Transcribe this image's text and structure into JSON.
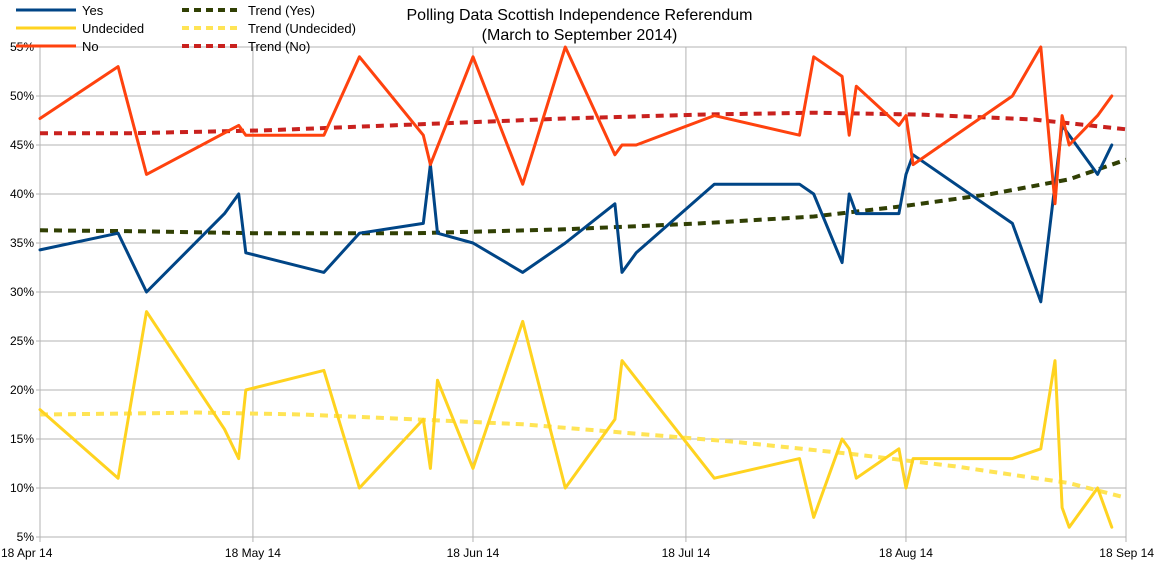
{
  "chart_data": {
    "type": "line",
    "title": "Polling Data Scottish Independence Referendum",
    "subtitle": "(March to September 2014)",
    "x_tick_labels": [
      "18 Apr 14",
      "18 May 14",
      "18 Jun 14",
      "18 Jul 14",
      "18 Aug 14",
      "18 Sep 14"
    ],
    "y_tick_labels": [
      "5%",
      "10%",
      "15%",
      "20%",
      "25%",
      "30%",
      "35%",
      "40%",
      "45%",
      "50%",
      "55%"
    ],
    "ylim": [
      5,
      55
    ],
    "grid": true,
    "legend_position": "top-left",
    "series": [
      {
        "name": "Yes",
        "color": "#004586",
        "dashed": false,
        "points": [
          [
            "2014-04-18",
            34.3
          ],
          [
            "2014-04-29",
            36
          ],
          [
            "2014-05-03",
            30
          ],
          [
            "2014-05-14",
            38
          ],
          [
            "2014-05-16",
            40
          ],
          [
            "2014-05-17",
            34
          ],
          [
            "2014-05-28",
            32
          ],
          [
            "2014-06-02",
            36
          ],
          [
            "2014-06-11",
            37
          ],
          [
            "2014-06-12",
            43
          ],
          [
            "2014-06-13",
            36
          ],
          [
            "2014-06-18",
            35
          ],
          [
            "2014-06-25",
            32
          ],
          [
            "2014-07-01",
            35
          ],
          [
            "2014-07-08",
            39
          ],
          [
            "2014-07-09",
            32
          ],
          [
            "2014-07-11",
            34
          ],
          [
            "2014-07-22",
            41
          ],
          [
            "2014-08-03",
            41
          ],
          [
            "2014-08-05",
            40
          ],
          [
            "2014-08-09",
            33
          ],
          [
            "2014-08-10",
            40
          ],
          [
            "2014-08-11",
            38
          ],
          [
            "2014-08-17",
            38
          ],
          [
            "2014-08-18",
            42
          ],
          [
            "2014-08-19",
            44
          ],
          [
            "2014-09-02",
            37
          ],
          [
            "2014-09-06",
            29
          ],
          [
            "2014-09-08",
            41
          ],
          [
            "2014-09-09",
            47
          ],
          [
            "2014-09-14",
            42
          ],
          [
            "2014-09-16",
            45
          ]
        ]
      },
      {
        "name": "Undecided",
        "color": "#ffd320",
        "dashed": false,
        "points": [
          [
            "2014-04-18",
            18
          ],
          [
            "2014-04-29",
            11
          ],
          [
            "2014-05-03",
            28
          ],
          [
            "2014-05-14",
            16
          ],
          [
            "2014-05-16",
            13
          ],
          [
            "2014-05-17",
            20
          ],
          [
            "2014-05-28",
            22
          ],
          [
            "2014-06-02",
            10
          ],
          [
            "2014-06-11",
            17
          ],
          [
            "2014-06-12",
            12
          ],
          [
            "2014-06-13",
            21
          ],
          [
            "2014-06-18",
            12
          ],
          [
            "2014-06-25",
            27
          ],
          [
            "2014-07-01",
            10
          ],
          [
            "2014-07-08",
            17
          ],
          [
            "2014-07-09",
            23
          ],
          [
            "2014-07-22",
            11
          ],
          [
            "2014-08-03",
            13
          ],
          [
            "2014-08-05",
            7
          ],
          [
            "2014-08-09",
            15
          ],
          [
            "2014-08-10",
            14
          ],
          [
            "2014-08-11",
            11
          ],
          [
            "2014-08-17",
            14
          ],
          [
            "2014-08-18",
            10
          ],
          [
            "2014-08-19",
            13
          ],
          [
            "2014-09-02",
            13
          ],
          [
            "2014-09-06",
            14
          ],
          [
            "2014-09-08",
            23
          ],
          [
            "2014-09-09",
            8
          ],
          [
            "2014-09-10",
            6
          ],
          [
            "2014-09-14",
            10
          ],
          [
            "2014-09-16",
            6
          ]
        ]
      },
      {
        "name": "No",
        "color": "#ff420e",
        "dashed": false,
        "points": [
          [
            "2014-04-18",
            47.7
          ],
          [
            "2014-04-29",
            53
          ],
          [
            "2014-05-03",
            42
          ],
          [
            "2014-05-16",
            47
          ],
          [
            "2014-05-17",
            46
          ],
          [
            "2014-05-28",
            46
          ],
          [
            "2014-06-02",
            54
          ],
          [
            "2014-06-11",
            46
          ],
          [
            "2014-06-12",
            43
          ],
          [
            "2014-06-18",
            54
          ],
          [
            "2014-06-25",
            41
          ],
          [
            "2014-07-01",
            55
          ],
          [
            "2014-07-08",
            44
          ],
          [
            "2014-07-09",
            45
          ],
          [
            "2014-07-11",
            45
          ],
          [
            "2014-07-22",
            48
          ],
          [
            "2014-08-03",
            46
          ],
          [
            "2014-08-05",
            54
          ],
          [
            "2014-08-09",
            52
          ],
          [
            "2014-08-10",
            46
          ],
          [
            "2014-08-11",
            51
          ],
          [
            "2014-08-17",
            47
          ],
          [
            "2014-08-18",
            48
          ],
          [
            "2014-08-19",
            43
          ],
          [
            "2014-09-02",
            50
          ],
          [
            "2014-09-06",
            55
          ],
          [
            "2014-09-08",
            39
          ],
          [
            "2014-09-09",
            48
          ],
          [
            "2014-09-10",
            45
          ],
          [
            "2014-09-14",
            48
          ],
          [
            "2014-09-16",
            50
          ]
        ]
      },
      {
        "name": "Trend (Yes)",
        "color": "#314004",
        "dashed": true,
        "points": [
          [
            "2014-04-18",
            36.3
          ],
          [
            "2014-05-01",
            36.2
          ],
          [
            "2014-05-18",
            36.0
          ],
          [
            "2014-06-10",
            36.0
          ],
          [
            "2014-07-01",
            36.4
          ],
          [
            "2014-07-20",
            37.0
          ],
          [
            "2014-08-05",
            37.7
          ],
          [
            "2014-08-18",
            38.8
          ],
          [
            "2014-08-30",
            40.0
          ],
          [
            "2014-09-10",
            41.5
          ],
          [
            "2014-09-18",
            43.5
          ]
        ]
      },
      {
        "name": "Trend (Undecided)",
        "color": "#ffe455",
        "dashed": true,
        "points": [
          [
            "2014-04-18",
            17.5
          ],
          [
            "2014-05-01",
            17.6
          ],
          [
            "2014-05-10",
            17.7
          ],
          [
            "2014-05-25",
            17.5
          ],
          [
            "2014-06-10",
            17.0
          ],
          [
            "2014-06-25",
            16.5
          ],
          [
            "2014-07-10",
            15.6
          ],
          [
            "2014-07-25",
            14.7
          ],
          [
            "2014-08-10",
            13.5
          ],
          [
            "2014-08-25",
            12.2
          ],
          [
            "2014-09-10",
            10.5
          ],
          [
            "2014-09-18",
            9.0
          ]
        ]
      },
      {
        "name": "Trend (No)",
        "color": "#c9211e",
        "dashed": true,
        "points": [
          [
            "2014-04-18",
            46.2
          ],
          [
            "2014-05-01",
            46.2
          ],
          [
            "2014-05-20",
            46.5
          ],
          [
            "2014-06-10",
            47.1
          ],
          [
            "2014-07-01",
            47.7
          ],
          [
            "2014-07-20",
            48.1
          ],
          [
            "2014-08-05",
            48.3
          ],
          [
            "2014-08-20",
            48.1
          ],
          [
            "2014-09-05",
            47.6
          ],
          [
            "2014-09-18",
            46.6
          ]
        ]
      }
    ]
  }
}
